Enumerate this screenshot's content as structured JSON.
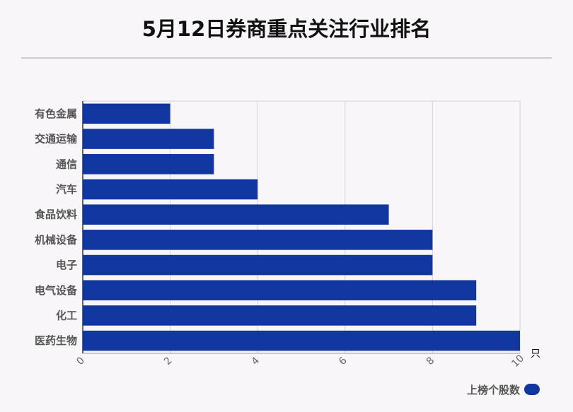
{
  "chart_data": {
    "type": "bar",
    "orientation": "horizontal",
    "title": "5月12日券商重点关注行业排名",
    "categories": [
      "有色金属",
      "交通运输",
      "通信",
      "汽车",
      "食品饮料",
      "机械设备",
      "电子",
      "电气设备",
      "化工",
      "医药生物"
    ],
    "series": [
      {
        "name": "上榜个股数",
        "values": [
          2,
          3,
          3,
          4,
          7,
          8,
          8,
          9,
          9,
          10
        ]
      }
    ],
    "xlim": [
      0,
      10
    ],
    "xticks": [
      "0",
      "2",
      "4",
      "6",
      "8",
      "10"
    ],
    "x_unit": "只",
    "grid": true,
    "legend_position": "bottom-right",
    "bar_color": "#1036a0"
  }
}
